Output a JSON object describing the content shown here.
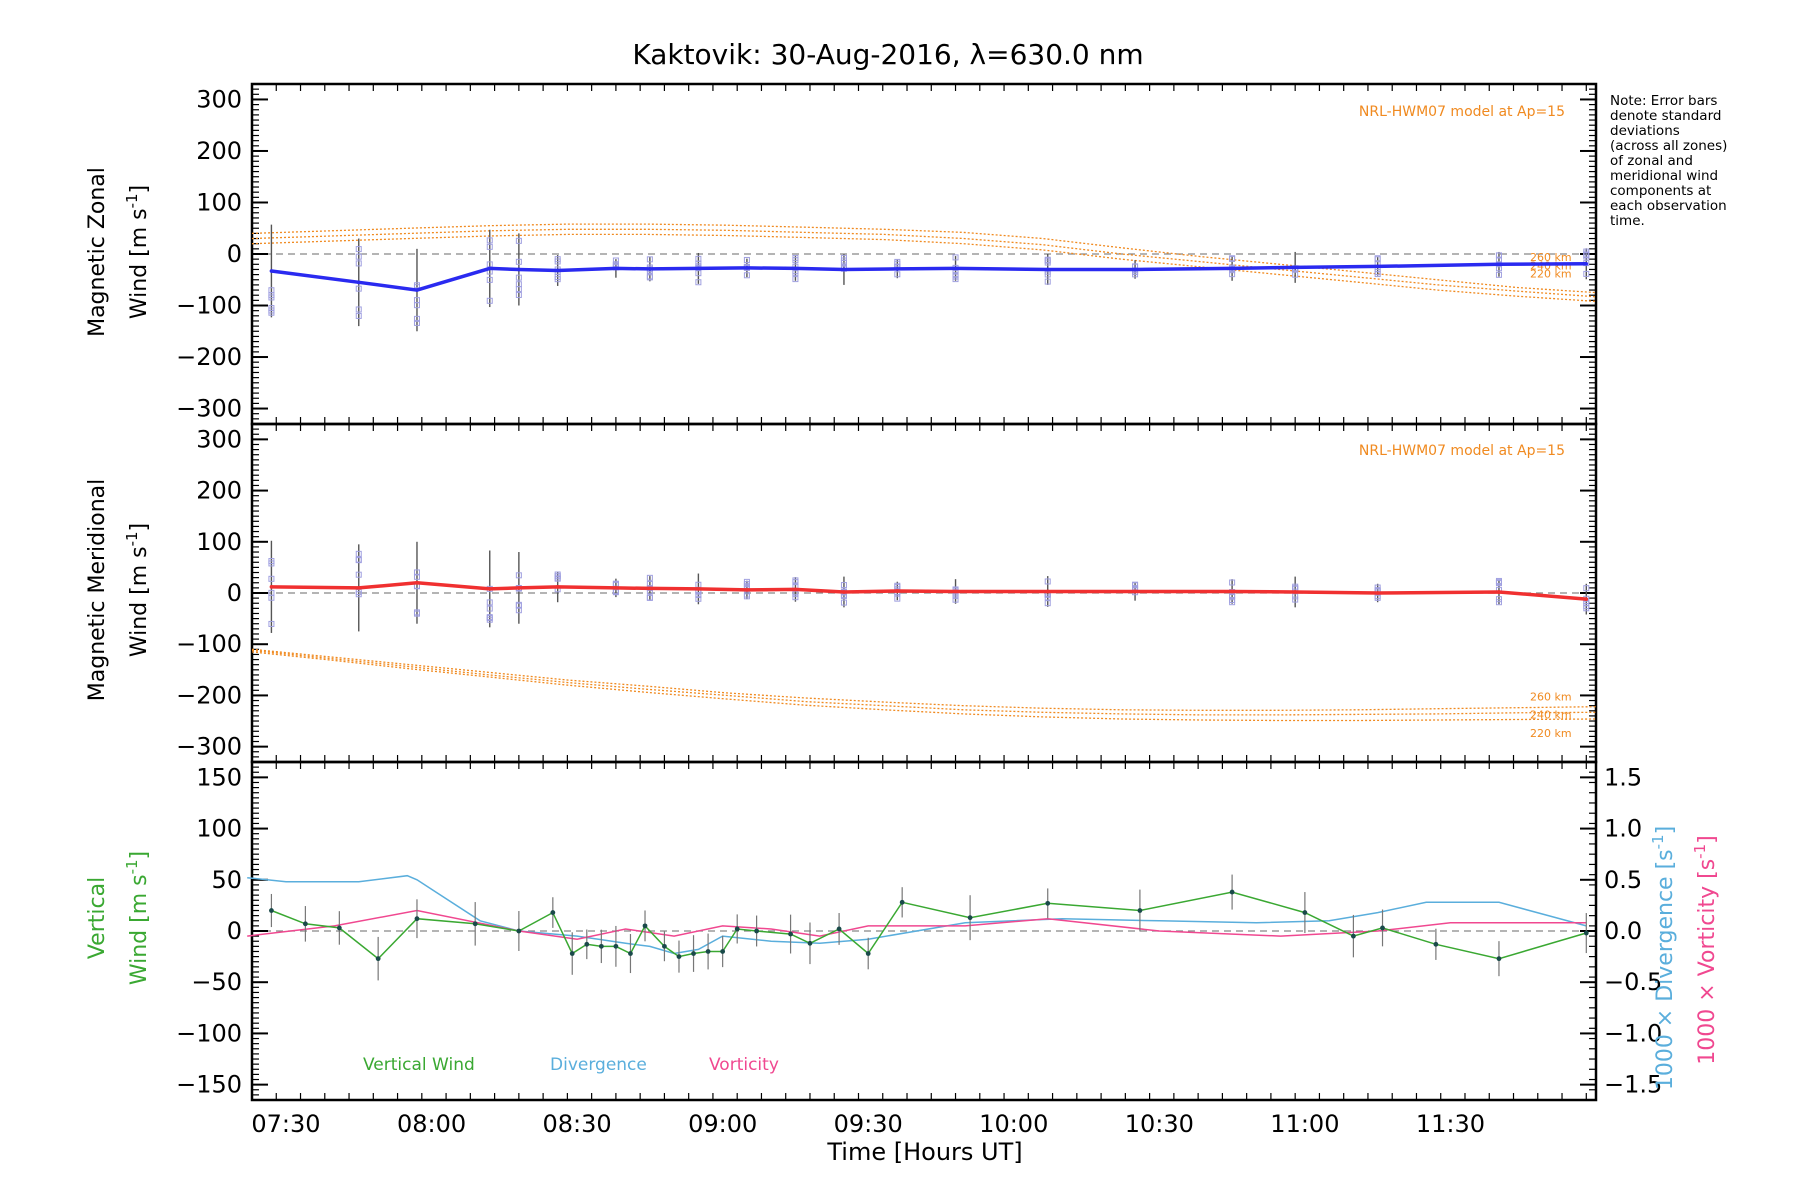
{
  "title": "Kaktovik: 30-Aug-2016, λ=630.0 nm",
  "xlabel": "Time [Hours UT]",
  "x_ticks": [
    "07:30",
    "08:00",
    "08:30",
    "09:00",
    "09:30",
    "10:00",
    "10:30",
    "11:00",
    "11:30"
  ],
  "note_lines": [
    "Note: Error bars",
    "denote standard",
    "deviations",
    "(across all zones)",
    "of zonal and",
    "meridional wind",
    "components at",
    "each observation",
    "time."
  ],
  "colors": {
    "zonal": "#2a2af0",
    "meridional": "#f03030",
    "model": "#f08a20",
    "vertical": "#3aa832",
    "divergence": "#5aaedc",
    "vorticity": "#f04890",
    "zones": "#a0a0e0",
    "errbar": "#555555"
  },
  "panels": {
    "zonal": {
      "ylabel_1": "Magnetic Zonal",
      "ylabel_2": "Wind [m s",
      "ylabel_sup": "-1",
      "ylabel_end": "]",
      "model_label": "NRL-HWM07 model at Ap=15",
      "alt_labels": [
        "260 km",
        "240 km",
        "220 km"
      ],
      "y_ticks": [
        "300",
        "200",
        "100",
        "0",
        "−100",
        "−200",
        "−300"
      ]
    },
    "meridional": {
      "ylabel_1": "Magnetic Meridional",
      "ylabel_2": "Wind [m s",
      "ylabel_sup": "-1",
      "ylabel_end": "]",
      "model_label": "NRL-HWM07 model at Ap=15",
      "alt_labels": [
        "260 km",
        "240 km",
        "220 km"
      ],
      "y_ticks": [
        "300",
        "200",
        "100",
        "0",
        "−100",
        "−200",
        "−300"
      ]
    },
    "vertical": {
      "ylabel_1": "Vertical",
      "ylabel_2": "Wind [m s",
      "ylabel_sup": "-1",
      "ylabel_end": "]",
      "y_ticks": [
        "150",
        "100",
        "50",
        "0",
        "−50",
        "−100",
        "−150"
      ],
      "right_ticks": [
        "1.5",
        "1.0",
        "0.5",
        "0.0",
        "−0.5",
        "−1.0",
        "−1.5"
      ],
      "right_label_div": "1000 × Divergence [s",
      "right_label_vort": "1000 × Vorticity [s",
      "right_sup": "-1",
      "right_end": "]",
      "legend": [
        "Vertical Wind",
        "Divergence",
        "Vorticity"
      ]
    }
  },
  "chart_data": [
    {
      "type": "line",
      "panel": "zonal",
      "ylim": [
        -330,
        330
      ],
      "xlim_hours": [
        7.3833,
        12.0
      ],
      "series": [
        {
          "x": [
            "07:27",
            "07:45",
            "07:57",
            "08:12",
            "08:18",
            "08:26",
            "08:38",
            "08:45",
            "08:55",
            "09:05",
            "09:15",
            "09:25",
            "09:36",
            "09:48",
            "10:07",
            "10:25",
            "10:45",
            "10:58",
            "11:15",
            "11:40",
            "11:58"
          ],
          "y": [
            -33,
            -55,
            -70,
            -28,
            -30,
            -32,
            -28,
            -29,
            -28,
            -27,
            -28,
            -30,
            -29,
            -28,
            -30,
            -30,
            -28,
            -26,
            -24,
            -20,
            -19
          ]
        }
      ],
      "model_260": [
        40,
        45,
        50,
        55,
        58,
        58,
        56,
        52,
        48,
        42,
        30,
        12,
        -5,
        -20,
        -35,
        -50,
        -65,
        -75
      ],
      "model_240": [
        30,
        35,
        40,
        45,
        48,
        48,
        46,
        42,
        38,
        30,
        18,
        0,
        -15,
        -30,
        -45,
        -60,
        -72,
        -83
      ],
      "model_220": [
        20,
        25,
        30,
        35,
        38,
        38,
        36,
        32,
        28,
        20,
        8,
        -10,
        -25,
        -40,
        -55,
        -70,
        -82,
        -92
      ]
    },
    {
      "type": "line",
      "panel": "meridional",
      "ylim": [
        -330,
        330
      ],
      "series": [
        {
          "x": [
            "07:27",
            "07:45",
            "07:57",
            "08:12",
            "08:18",
            "08:26",
            "08:38",
            "08:45",
            "08:55",
            "09:05",
            "09:15",
            "09:25",
            "09:36",
            "09:48",
            "10:07",
            "10:25",
            "10:45",
            "10:58",
            "11:15",
            "11:40",
            "11:58"
          ],
          "y": [
            12,
            10,
            20,
            8,
            10,
            12,
            10,
            9,
            8,
            6,
            7,
            2,
            4,
            3,
            3,
            3,
            3,
            2,
            0,
            2,
            -12
          ]
        }
      ],
      "model_260": [
        -110,
        -125,
        -140,
        -155,
        -170,
        -182,
        -195,
        -205,
        -213,
        -220,
        -225,
        -228,
        -229,
        -229,
        -228,
        -226,
        -224,
        -222
      ],
      "model_240": [
        -112,
        -128,
        -144,
        -160,
        -175,
        -188,
        -200,
        -212,
        -220,
        -228,
        -233,
        -236,
        -238,
        -238,
        -237,
        -236,
        -234,
        -233
      ],
      "model_220": [
        -115,
        -131,
        -148,
        -164,
        -180,
        -194,
        -207,
        -219,
        -228,
        -236,
        -242,
        -246,
        -248,
        -249,
        -249,
        -248,
        -247,
        -246
      ]
    },
    {
      "type": "line",
      "panel": "vertical",
      "ylim": [
        -165,
        165
      ],
      "series": [
        {
          "name": "Vertical Wind",
          "x": [
            "07:27",
            "07:34",
            "07:41",
            "07:49",
            "07:57",
            "08:09",
            "08:18",
            "08:25",
            "08:29",
            "08:32",
            "08:35",
            "08:38",
            "08:41",
            "08:44",
            "08:48",
            "08:51",
            "08:54",
            "08:57",
            "09:00",
            "09:03",
            "09:07",
            "09:14",
            "09:18",
            "09:24",
            "09:30",
            "09:37",
            "09:51",
            "10:07",
            "10:26",
            "10:45",
            "11:00",
            "11:10",
            "11:16",
            "11:27",
            "11:40",
            "11:58"
          ],
          "y": [
            20,
            7,
            3,
            -27,
            12,
            7,
            0,
            18,
            -22,
            -13,
            -15,
            -15,
            -22,
            5,
            -15,
            -25,
            -22,
            -20,
            -20,
            2,
            0,
            -3,
            -12,
            2,
            -22,
            28,
            13,
            27,
            20,
            38,
            18,
            -5,
            3,
            -13,
            -27,
            -2
          ]
        },
        {
          "name": "Divergence",
          "x": [
            "07:22",
            "07:30",
            "07:45",
            "07:55",
            "07:57",
            "08:10",
            "08:18",
            "08:30",
            "08:40",
            "08:45",
            "08:50",
            "08:55",
            "09:00",
            "09:10",
            "09:20",
            "09:30",
            "09:50",
            "10:10",
            "10:30",
            "10:50",
            "11:05",
            "11:15",
            "11:25",
            "11:40",
            "11:58"
          ],
          "y": [
            0.52,
            0.48,
            0.48,
            0.54,
            0.5,
            0.1,
            0.0,
            -0.05,
            -0.12,
            -0.15,
            -0.22,
            -0.18,
            -0.05,
            -0.1,
            -0.12,
            -0.08,
            0.08,
            0.12,
            0.1,
            0.08,
            0.1,
            0.18,
            0.28,
            0.28,
            0.05
          ]
        },
        {
          "name": "Vorticity",
          "x": [
            "07:22",
            "07:40",
            "07:57",
            "08:18",
            "08:30",
            "08:40",
            "08:50",
            "09:00",
            "09:10",
            "09:20",
            "09:30",
            "09:50",
            "10:07",
            "10:30",
            "10:55",
            "11:15",
            "11:30",
            "11:58"
          ],
          "y": [
            -0.05,
            0.05,
            0.2,
            0.0,
            -0.08,
            0.02,
            -0.05,
            0.05,
            0.02,
            -0.05,
            0.05,
            0.05,
            0.12,
            0.0,
            -0.05,
            0.0,
            0.08,
            0.08
          ]
        }
      ]
    }
  ]
}
